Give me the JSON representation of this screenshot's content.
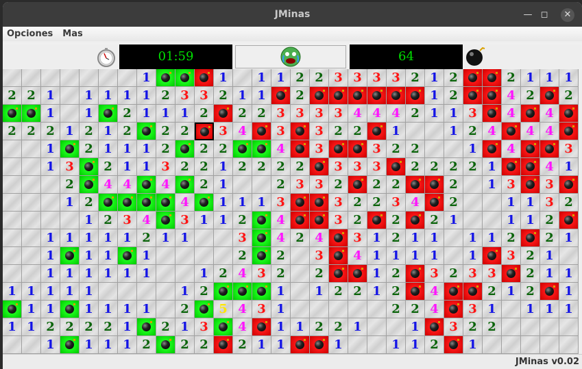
{
  "window": {
    "title": "JMinas"
  },
  "menu": [
    "Opciones",
    "Mas"
  ],
  "toolbar": {
    "timer": "01:59",
    "mines_left": "64",
    "face_state": "lost-crying"
  },
  "status": "JMinas v0.02",
  "colors": {
    "1": "#1414e6",
    "2": "#0a640a",
    "3": "#ff1414",
    "4": "#ff14ff",
    "5": "#ffe600",
    "flagged_mine": "#00e600",
    "exploded_mine": "#e60000"
  },
  "legend": {
    ".": "empty",
    "G": "mine-correctly-flagged",
    "R": "mine-revealed",
    "X": "mine-clicked"
  },
  "board": {
    "rows": [
      ".......1GGR1.11223333212RR2111",
      "221.1111233211R2RRRRRR12RR42R2",
      "GG1.1G21112R2233334442113R4R4R",
      "2221212G22X34R3R322R1..124R44R",
      "..1G21112G22GG4R3RR322..1R4RR31",
      "..13G21132212222R333R22221RR41",
      "...2G44G4G21..2332R22RR2.13R3R",
      "...12GGGG4G1113RR32234R2..1132",
      "....1234G3112G4RR32R2R21..112R",
      "..11111211..3G424R31211.112R21",
      "..1G11G1....2G2.3R41111.1R321.",
      "..111111..12432.2RR12R3233R211",
      "11111....12GGG1.12212R4RR212R1",
      "G11G1111.2G5431.....224R31.111",
      "1122221G213G4R11221..1R322.....",
      "..1G1112G22R211RR1..112R1....."
    ]
  }
}
